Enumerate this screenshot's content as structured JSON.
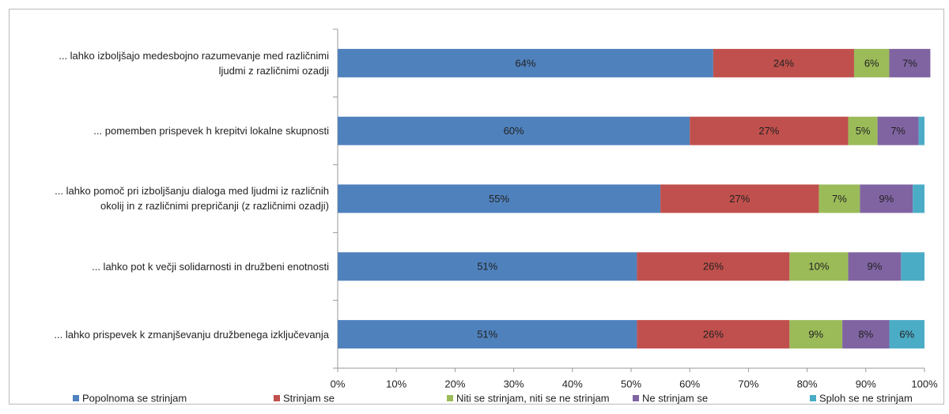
{
  "chart_data": {
    "type": "stacked_bar_horizontal",
    "categories": [
      "... lahko izboljšajo medesbojno razumevanje med različnimi ljudmi z različnimi ozadji",
      "... pomemben prispevek h krepitvi lokalne skupnosti",
      "... lahko pomoč pri izboljšanju dialoga med ljudmi iz različnih okolij in z različnimi prepričanji (z različnimi ozadji)",
      "... lahko pot k večji solidarnosti in družbeni enotnosti",
      "... lahko prispevek k zmanjševanju družbenega izključevanja"
    ],
    "series": [
      {
        "name": "Popolnoma se strinjam",
        "color": "#4f81bd",
        "values": [
          64,
          60,
          55,
          51,
          51
        ],
        "value_labels": [
          "64%",
          "60%",
          "55%",
          "51%",
          "51%"
        ]
      },
      {
        "name": "Strinjam se",
        "color": "#c0504d",
        "values": [
          24,
          27,
          27,
          26,
          26
        ],
        "value_labels": [
          "24%",
          "27%",
          "27%",
          "26%",
          "26%"
        ]
      },
      {
        "name": "Niti se strinjam, niti se ne strinjam",
        "color": "#9bbb59",
        "values": [
          6,
          5,
          7,
          10,
          9
        ],
        "value_labels": [
          "6%",
          "5%",
          "7%",
          "10%",
          "9%"
        ]
      },
      {
        "name": "Ne strinjam se",
        "color": "#8064a2",
        "values": [
          7,
          7,
          9,
          9,
          8
        ],
        "value_labels": [
          "7%",
          "7%",
          "9%",
          "9%",
          "8%"
        ]
      },
      {
        "name": "Sploh se ne strinjam",
        "color": "#4bacc6",
        "values": [
          0,
          1,
          2,
          4,
          6
        ],
        "value_labels": [
          null,
          null,
          null,
          null,
          "6%"
        ]
      }
    ],
    "xlim": [
      0,
      100
    ],
    "xticks": [
      {
        "value": 0,
        "label": "0%"
      },
      {
        "value": 10,
        "label": "10%"
      },
      {
        "value": 20,
        "label": "20%"
      },
      {
        "value": 30,
        "label": "30%"
      },
      {
        "value": 40,
        "label": "40%"
      },
      {
        "value": 50,
        "label": "50%"
      },
      {
        "value": 60,
        "label": "60%"
      },
      {
        "value": 70,
        "label": "70%"
      },
      {
        "value": 80,
        "label": "80%"
      },
      {
        "value": 90,
        "label": "90%"
      },
      {
        "value": 100,
        "label": "100%"
      }
    ],
    "legend": "bottom"
  }
}
